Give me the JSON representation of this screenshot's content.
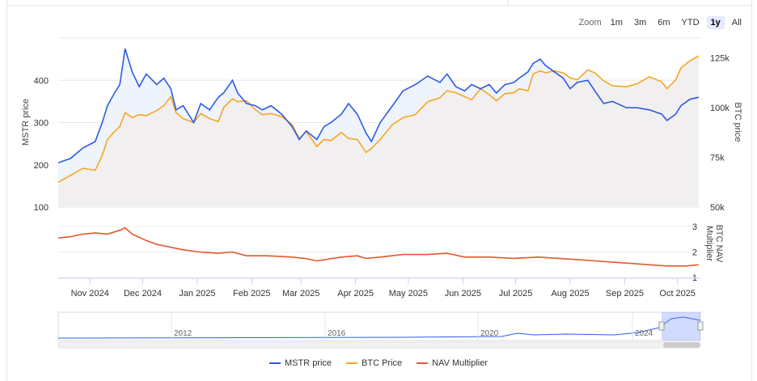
{
  "zoom": {
    "label": "Zoom",
    "options": [
      "1m",
      "3m",
      "6m",
      "YTD",
      "1y",
      "All"
    ],
    "active": "1y"
  },
  "colors": {
    "mstr": "#2d5be3",
    "btc": "#f5a623",
    "nav": "#e4572e",
    "mstr_fill": "#eef3fc",
    "btc_fill": "#f1efef"
  },
  "legend": [
    {
      "key": "mstr",
      "label": "MSTR price",
      "color": "#2d5be3"
    },
    {
      "key": "btc",
      "label": "BTC Price",
      "color": "#f5a623"
    },
    {
      "key": "nav",
      "label": "NAV Multiplier",
      "color": "#e4572e"
    }
  ],
  "chart_data": {
    "type": "line",
    "x_range": [
      "2024-10-14",
      "2025-10-14"
    ],
    "x_ticks": [
      {
        "date": "2024-11-01",
        "label": "Nov 2024"
      },
      {
        "date": "2024-12-01",
        "label": "Dec 2024"
      },
      {
        "date": "2025-01-01",
        "label": "Jan 2025"
      },
      {
        "date": "2025-02-01",
        "label": "Feb 2025"
      },
      {
        "date": "2025-03-01",
        "label": "Mar 2025"
      },
      {
        "date": "2025-04-01",
        "label": "Apr 2025"
      },
      {
        "date": "2025-05-01",
        "label": "May 2025"
      },
      {
        "date": "2025-06-01",
        "label": "Jun 2025"
      },
      {
        "date": "2025-07-01",
        "label": "Jul 2025"
      },
      {
        "date": "2025-08-01",
        "label": "Aug 2025"
      },
      {
        "date": "2025-09-01",
        "label": "Sep 2025"
      },
      {
        "date": "2025-10-01",
        "label": "Oct 2025"
      }
    ],
    "panels": {
      "price": {
        "left_axis": {
          "label": "MSTR price",
          "range": [
            100,
            500
          ],
          "ticks": [
            100,
            200,
            300,
            400
          ]
        },
        "right_axis": {
          "label": "BTC price",
          "range": [
            50000,
            135000
          ],
          "ticks": [
            50000,
            75000,
            100000,
            125000
          ],
          "tick_labels": [
            "50k",
            "75k",
            "100k",
            "125k"
          ]
        }
      },
      "nav": {
        "right_axis": {
          "label": "BTC NAV Multiplier",
          "range": [
            1,
            3
          ],
          "ticks": [
            1,
            2,
            3
          ]
        }
      }
    },
    "series": [
      {
        "name": "MSTR price",
        "key": "mstr",
        "axis": "left",
        "panel": "price",
        "points": [
          [
            "2024-10-14",
            205
          ],
          [
            "2024-10-21",
            215
          ],
          [
            "2024-10-28",
            240
          ],
          [
            "2024-11-04",
            255
          ],
          [
            "2024-11-08",
            300
          ],
          [
            "2024-11-11",
            340
          ],
          [
            "2024-11-15",
            370
          ],
          [
            "2024-11-18",
            390
          ],
          [
            "2024-11-21",
            475
          ],
          [
            "2024-11-25",
            420
          ],
          [
            "2024-11-29",
            385
          ],
          [
            "2024-12-03",
            415
          ],
          [
            "2024-12-09",
            390
          ],
          [
            "2024-12-13",
            405
          ],
          [
            "2024-12-17",
            380
          ],
          [
            "2024-12-20",
            330
          ],
          [
            "2024-12-24",
            340
          ],
          [
            "2024-12-30",
            300
          ],
          [
            "2025-01-03",
            345
          ],
          [
            "2025-01-08",
            330
          ],
          [
            "2025-01-13",
            360
          ],
          [
            "2025-01-16",
            370
          ],
          [
            "2025-01-21",
            400
          ],
          [
            "2025-01-24",
            370
          ],
          [
            "2025-01-29",
            345
          ],
          [
            "2025-02-03",
            340
          ],
          [
            "2025-02-07",
            330
          ],
          [
            "2025-02-12",
            340
          ],
          [
            "2025-02-18",
            320
          ],
          [
            "2025-02-24",
            290
          ],
          [
            "2025-02-28",
            260
          ],
          [
            "2025-03-04",
            280
          ],
          [
            "2025-03-10",
            260
          ],
          [
            "2025-03-14",
            290
          ],
          [
            "2025-03-18",
            300
          ],
          [
            "2025-03-24",
            320
          ],
          [
            "2025-03-28",
            345
          ],
          [
            "2025-04-02",
            320
          ],
          [
            "2025-04-07",
            275
          ],
          [
            "2025-04-10",
            255
          ],
          [
            "2025-04-15",
            300
          ],
          [
            "2025-04-22",
            340
          ],
          [
            "2025-04-28",
            375
          ],
          [
            "2025-05-05",
            390
          ],
          [
            "2025-05-12",
            410
          ],
          [
            "2025-05-19",
            395
          ],
          [
            "2025-05-23",
            415
          ],
          [
            "2025-05-28",
            385
          ],
          [
            "2025-06-02",
            375
          ],
          [
            "2025-06-06",
            390
          ],
          [
            "2025-06-11",
            380
          ],
          [
            "2025-06-16",
            390
          ],
          [
            "2025-06-20",
            370
          ],
          [
            "2025-06-25",
            390
          ],
          [
            "2025-06-30",
            395
          ],
          [
            "2025-07-03",
            405
          ],
          [
            "2025-07-08",
            420
          ],
          [
            "2025-07-11",
            440
          ],
          [
            "2025-07-15",
            450
          ],
          [
            "2025-07-18",
            435
          ],
          [
            "2025-07-23",
            420
          ],
          [
            "2025-07-28",
            405
          ],
          [
            "2025-08-01",
            380
          ],
          [
            "2025-08-05",
            395
          ],
          [
            "2025-08-11",
            400
          ],
          [
            "2025-08-15",
            375
          ],
          [
            "2025-08-20",
            345
          ],
          [
            "2025-08-25",
            350
          ],
          [
            "2025-09-02",
            335
          ],
          [
            "2025-09-08",
            335
          ],
          [
            "2025-09-15",
            330
          ],
          [
            "2025-09-22",
            320
          ],
          [
            "2025-09-25",
            305
          ],
          [
            "2025-09-30",
            320
          ],
          [
            "2025-10-03",
            340
          ],
          [
            "2025-10-08",
            355
          ],
          [
            "2025-10-13",
            360
          ]
        ]
      },
      {
        "name": "BTC Price",
        "key": "btc",
        "axis": "right",
        "panel": "price",
        "points": [
          [
            "2024-10-14",
            62500
          ],
          [
            "2024-10-21",
            66000
          ],
          [
            "2024-10-28",
            69500
          ],
          [
            "2024-11-04",
            68500
          ],
          [
            "2024-11-08",
            76000
          ],
          [
            "2024-11-11",
            84000
          ],
          [
            "2024-11-15",
            88000
          ],
          [
            "2024-11-18",
            90500
          ],
          [
            "2024-11-21",
            97500
          ],
          [
            "2024-11-25",
            95000
          ],
          [
            "2024-11-29",
            96500
          ],
          [
            "2024-12-03",
            96000
          ],
          [
            "2024-12-09",
            98500
          ],
          [
            "2024-12-13",
            101000
          ],
          [
            "2024-12-17",
            105500
          ],
          [
            "2024-12-20",
            97500
          ],
          [
            "2024-12-24",
            94500
          ],
          [
            "2024-12-30",
            92500
          ],
          [
            "2025-01-03",
            97000
          ],
          [
            "2025-01-08",
            94500
          ],
          [
            "2025-01-13",
            93000
          ],
          [
            "2025-01-16",
            100000
          ],
          [
            "2025-01-21",
            104500
          ],
          [
            "2025-01-24",
            103000
          ],
          [
            "2025-01-29",
            103500
          ],
          [
            "2025-02-03",
            99000
          ],
          [
            "2025-02-07",
            96500
          ],
          [
            "2025-02-12",
            97000
          ],
          [
            "2025-02-18",
            95500
          ],
          [
            "2025-02-24",
            91500
          ],
          [
            "2025-02-28",
            84500
          ],
          [
            "2025-03-04",
            88000
          ],
          [
            "2025-03-10",
            80500
          ],
          [
            "2025-03-14",
            84000
          ],
          [
            "2025-03-18",
            83500
          ],
          [
            "2025-03-24",
            87500
          ],
          [
            "2025-03-28",
            84500
          ],
          [
            "2025-04-02",
            84000
          ],
          [
            "2025-04-07",
            77500
          ],
          [
            "2025-04-10",
            79500
          ],
          [
            "2025-04-15",
            84000
          ],
          [
            "2025-04-22",
            91500
          ],
          [
            "2025-04-28",
            95000
          ],
          [
            "2025-05-05",
            96500
          ],
          [
            "2025-05-12",
            103000
          ],
          [
            "2025-05-19",
            105000
          ],
          [
            "2025-05-23",
            108500
          ],
          [
            "2025-05-28",
            107500
          ],
          [
            "2025-06-02",
            105500
          ],
          [
            "2025-06-06",
            104000
          ],
          [
            "2025-06-11",
            109500
          ],
          [
            "2025-06-16",
            106500
          ],
          [
            "2025-06-20",
            103500
          ],
          [
            "2025-06-25",
            107000
          ],
          [
            "2025-06-30",
            107500
          ],
          [
            "2025-07-03",
            109500
          ],
          [
            "2025-07-08",
            108500
          ],
          [
            "2025-07-11",
            117000
          ],
          [
            "2025-07-15",
            118500
          ],
          [
            "2025-07-18",
            117500
          ],
          [
            "2025-07-23",
            118500
          ],
          [
            "2025-07-28",
            117500
          ],
          [
            "2025-08-01",
            115000
          ],
          [
            "2025-08-05",
            114000
          ],
          [
            "2025-08-11",
            119000
          ],
          [
            "2025-08-15",
            117500
          ],
          [
            "2025-08-20",
            113500
          ],
          [
            "2025-08-25",
            111000
          ],
          [
            "2025-09-02",
            110500
          ],
          [
            "2025-09-08",
            112000
          ],
          [
            "2025-09-15",
            115500
          ],
          [
            "2025-09-22",
            113000
          ],
          [
            "2025-09-25",
            109500
          ],
          [
            "2025-09-30",
            114000
          ],
          [
            "2025-10-03",
            120000
          ],
          [
            "2025-10-08",
            123500
          ],
          [
            "2025-10-13",
            126000
          ]
        ]
      },
      {
        "name": "NAV Multiplier",
        "key": "nav",
        "axis": "right",
        "panel": "nav",
        "points": [
          [
            "2024-10-14",
            2.55
          ],
          [
            "2024-10-21",
            2.6
          ],
          [
            "2024-10-28",
            2.7
          ],
          [
            "2024-11-04",
            2.75
          ],
          [
            "2024-11-11",
            2.7
          ],
          [
            "2024-11-18",
            2.85
          ],
          [
            "2024-11-21",
            2.95
          ],
          [
            "2024-11-25",
            2.7
          ],
          [
            "2024-12-03",
            2.45
          ],
          [
            "2024-12-09",
            2.3
          ],
          [
            "2024-12-16",
            2.2
          ],
          [
            "2024-12-23",
            2.1
          ],
          [
            "2025-01-02",
            2.0
          ],
          [
            "2025-01-13",
            1.95
          ],
          [
            "2025-01-21",
            2.0
          ],
          [
            "2025-01-29",
            1.85
          ],
          [
            "2025-02-10",
            1.85
          ],
          [
            "2025-02-24",
            1.8
          ],
          [
            "2025-03-03",
            1.75
          ],
          [
            "2025-03-10",
            1.65
          ],
          [
            "2025-03-24",
            1.8
          ],
          [
            "2025-04-02",
            1.85
          ],
          [
            "2025-04-07",
            1.75
          ],
          [
            "2025-04-15",
            1.8
          ],
          [
            "2025-04-28",
            1.9
          ],
          [
            "2025-05-12",
            1.9
          ],
          [
            "2025-05-23",
            1.95
          ],
          [
            "2025-06-02",
            1.8
          ],
          [
            "2025-06-16",
            1.8
          ],
          [
            "2025-06-30",
            1.75
          ],
          [
            "2025-07-14",
            1.8
          ],
          [
            "2025-07-25",
            1.75
          ],
          [
            "2025-08-05",
            1.7
          ],
          [
            "2025-08-15",
            1.65
          ],
          [
            "2025-08-25",
            1.6
          ],
          [
            "2025-09-05",
            1.55
          ],
          [
            "2025-09-15",
            1.5
          ],
          [
            "2025-09-25",
            1.45
          ],
          [
            "2025-10-06",
            1.45
          ],
          [
            "2025-10-13",
            1.5
          ]
        ]
      }
    ],
    "navigator": {
      "year_labels": [
        "2012",
        "2016",
        "2020",
        "2024"
      ]
    }
  }
}
